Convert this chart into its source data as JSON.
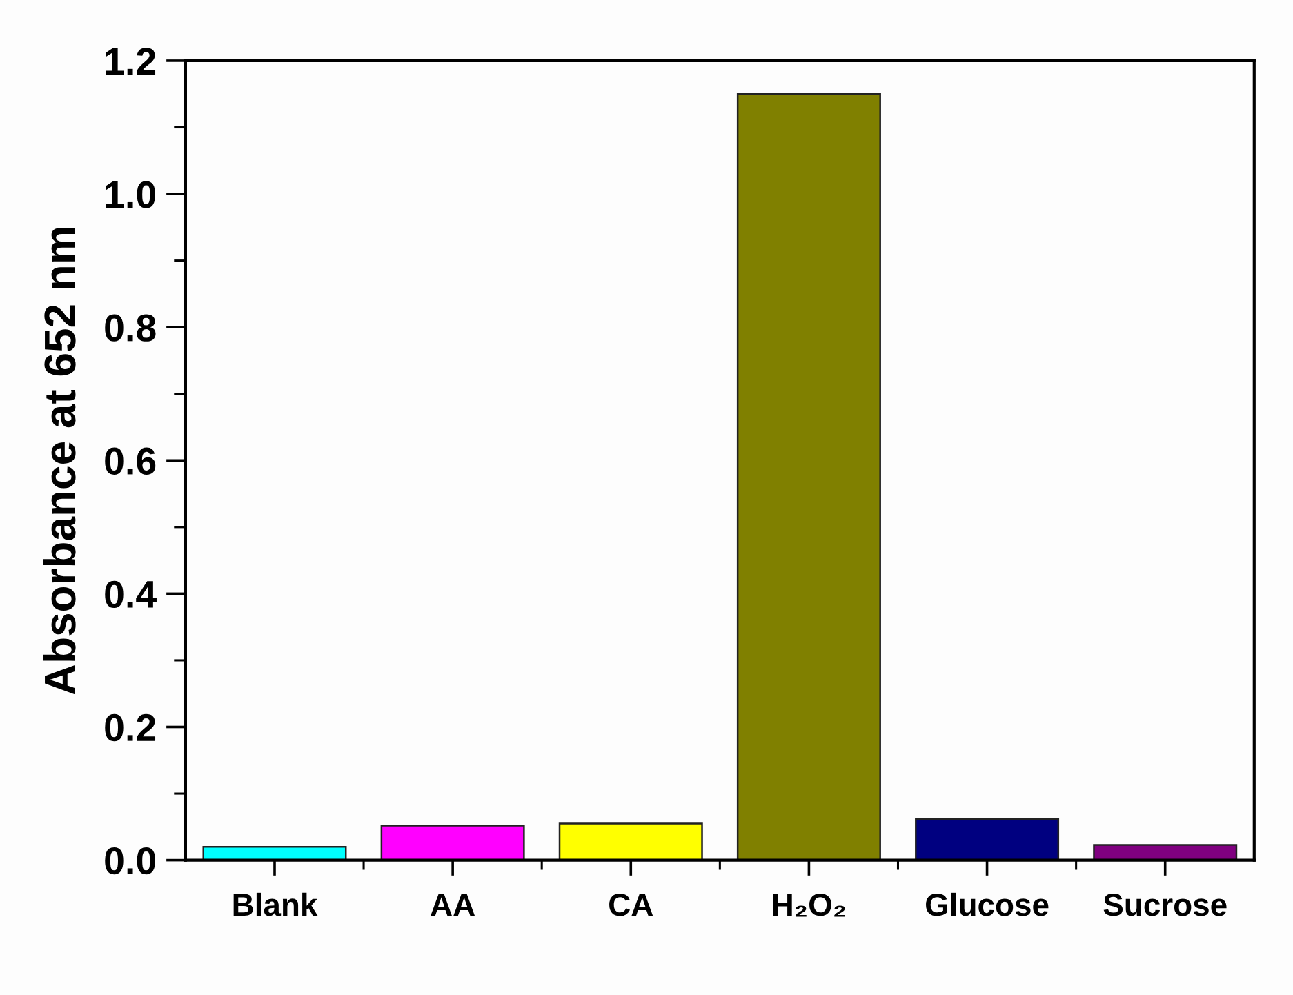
{
  "chart_data": {
    "type": "bar",
    "ylabel": "Absorbance at 652 nm",
    "categories": [
      "Blank",
      "AA",
      "CA",
      "H₂O₂",
      "Glucose",
      "Sucrose"
    ],
    "values": [
      0.02,
      0.052,
      0.055,
      1.15,
      0.062,
      0.023
    ],
    "colors": [
      "#00ffff",
      "#ff00ff",
      "#ffff00",
      "#808000",
      "#000080",
      "#800080"
    ],
    "ylim": [
      0,
      1.2
    ],
    "yticks": [
      {
        "value": 0,
        "label": "0.0"
      },
      {
        "value": 0.1,
        "label": null
      },
      {
        "value": 0.2,
        "label": "0.2"
      },
      {
        "value": 0.3,
        "label": null
      },
      {
        "value": 0.4,
        "label": "0.4"
      },
      {
        "value": 0.5,
        "label": null
      },
      {
        "value": 0.6,
        "label": "0.6"
      },
      {
        "value": 0.7,
        "label": null
      },
      {
        "value": 0.8,
        "label": "0.8"
      },
      {
        "value": 0.9,
        "label": null
      },
      {
        "value": 1.0,
        "label": "1.0"
      },
      {
        "value": 1.1,
        "label": null
      },
      {
        "value": 1.2,
        "label": "1.2"
      }
    ]
  }
}
